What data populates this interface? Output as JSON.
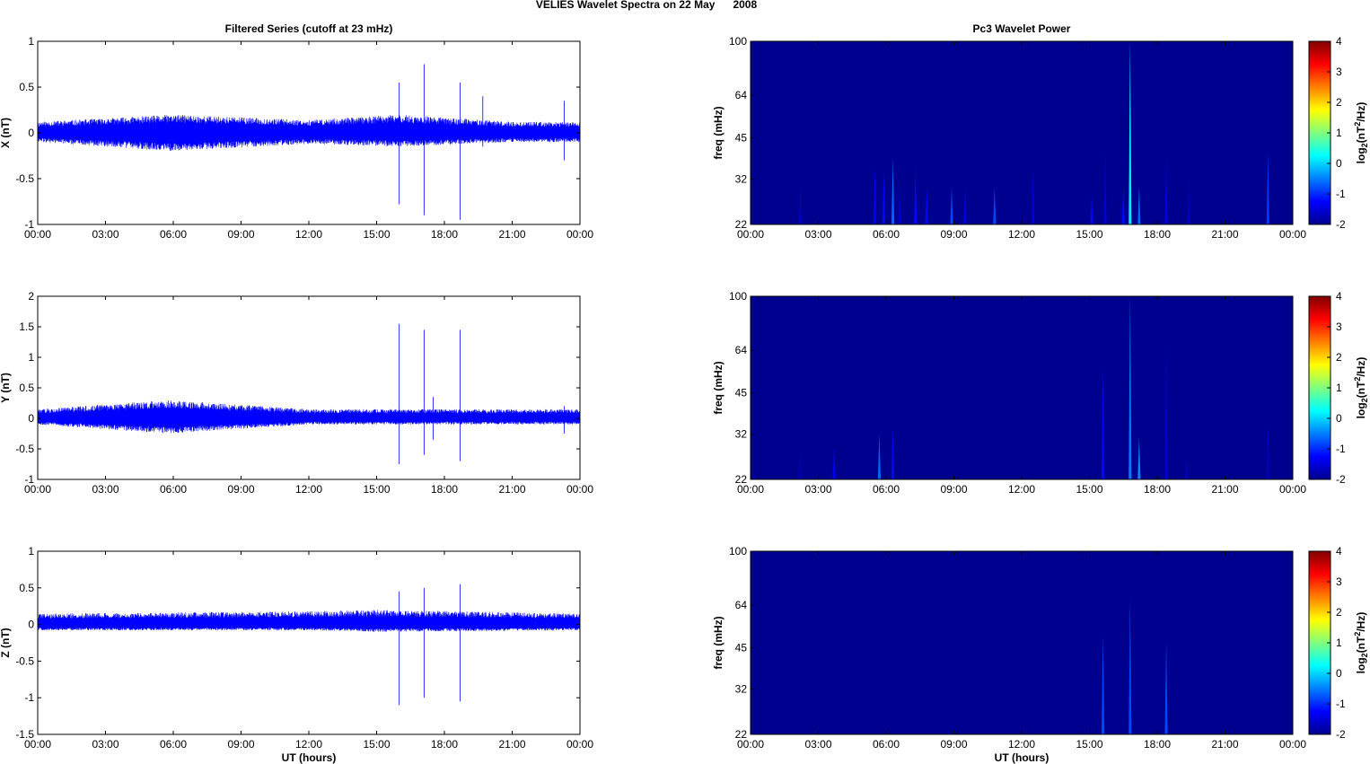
{
  "figure_title": "VELIES Wavelet Spectra on 22 May      2008",
  "colors": {
    "trace": "#0000ff",
    "spectrogram_background": "#00008f"
  },
  "chart_data": [
    {
      "type": "line",
      "title": "Filtered Series (cutoff at 23 mHz)",
      "xlabel": "",
      "ylabel": "X (nT)",
      "xlim": [
        "00:00",
        "00:00"
      ],
      "xticks": [
        "00:00",
        "03:00",
        "06:00",
        "09:00",
        "12:00",
        "15:00",
        "18:00",
        "21:00",
        "00:00"
      ],
      "ylim": [
        -1,
        1
      ],
      "yticks": [
        "-1",
        "-0.5",
        "0",
        "0.5",
        "1"
      ],
      "noise_band": [
        {
          "x": 0,
          "upper": 0.12,
          "lower": -0.1
        },
        {
          "x": 6,
          "upper": 0.2,
          "lower": -0.2
        },
        {
          "x": 12,
          "upper": 0.14,
          "lower": -0.12
        },
        {
          "x": 16,
          "upper": 0.2,
          "lower": -0.15
        },
        {
          "x": 21,
          "upper": 0.12,
          "lower": -0.1
        },
        {
          "x": 24,
          "upper": 0.12,
          "lower": -0.1
        }
      ],
      "spikes": [
        {
          "x": 16.0,
          "min": -0.78,
          "max": 0.55
        },
        {
          "x": 17.1,
          "min": -0.9,
          "max": 0.75
        },
        {
          "x": 18.7,
          "min": -0.95,
          "max": 0.55
        },
        {
          "x": 19.7,
          "min": -0.15,
          "max": 0.4
        },
        {
          "x": 23.3,
          "min": -0.3,
          "max": 0.35
        }
      ]
    },
    {
      "type": "line",
      "title": "",
      "xlabel": "",
      "ylabel": "Y (nT)",
      "xlim": [
        "00:00",
        "00:00"
      ],
      "xticks": [
        "00:00",
        "03:00",
        "06:00",
        "09:00",
        "12:00",
        "15:00",
        "18:00",
        "21:00",
        "00:00"
      ],
      "ylim": [
        -1,
        2
      ],
      "yticks": [
        "-1",
        "-0.5",
        "0",
        "0.5",
        "1",
        "1.5",
        "2"
      ],
      "noise_band": [
        {
          "x": 0,
          "upper": 0.15,
          "lower": -0.1
        },
        {
          "x": 5.8,
          "upper": 0.3,
          "lower": -0.25
        },
        {
          "x": 12,
          "upper": 0.15,
          "lower": -0.1
        },
        {
          "x": 24,
          "upper": 0.15,
          "lower": -0.1
        }
      ],
      "spikes": [
        {
          "x": 16.0,
          "min": -0.75,
          "max": 1.55
        },
        {
          "x": 17.1,
          "min": -0.6,
          "max": 1.45
        },
        {
          "x": 17.5,
          "min": -0.35,
          "max": 0.35
        },
        {
          "x": 18.7,
          "min": -0.7,
          "max": 1.45
        },
        {
          "x": 23.3,
          "min": -0.25,
          "max": 0.2
        }
      ]
    },
    {
      "type": "line",
      "title": "",
      "xlabel": "UT (hours)",
      "ylabel": "Z (nT)",
      "xlim": [
        "00:00",
        "00:00"
      ],
      "xticks": [
        "00:00",
        "03:00",
        "06:00",
        "09:00",
        "12:00",
        "15:00",
        "18:00",
        "21:00",
        "00:00"
      ],
      "ylim": [
        -1.5,
        1
      ],
      "yticks": [
        "-1.5",
        "-1",
        "-0.5",
        "0",
        "0.5",
        "1"
      ],
      "noise_band": [
        {
          "x": 0,
          "upper": 0.15,
          "lower": -0.08
        },
        {
          "x": 12,
          "upper": 0.18,
          "lower": -0.08
        },
        {
          "x": 15,
          "upper": 0.2,
          "lower": -0.1
        },
        {
          "x": 24,
          "upper": 0.15,
          "lower": -0.08
        }
      ],
      "spikes": [
        {
          "x": 16.0,
          "min": -1.1,
          "max": 0.45
        },
        {
          "x": 17.1,
          "min": -1.0,
          "max": 0.5
        },
        {
          "x": 18.7,
          "min": -1.05,
          "max": 0.55
        }
      ]
    },
    {
      "type": "heatmap",
      "title": "Pc3 Wavelet Power",
      "xlabel": "",
      "ylabel": "freq (mHz)",
      "xticks": [
        "00:00",
        "03:00",
        "06:00",
        "09:00",
        "12:00",
        "15:00",
        "18:00",
        "21:00",
        "00:00"
      ],
      "ylim": [
        22,
        100
      ],
      "yscale": "log",
      "yticks": [
        22,
        32,
        45,
        64,
        100
      ],
      "colorbar": {
        "label_base": "log",
        "label_sub": "2",
        "label_open": "(nT",
        "label_sup": "2",
        "label_close": "/Hz)",
        "range": [
          -2,
          4
        ],
        "ticks": [
          "-2",
          "-1",
          "0",
          "1",
          "2",
          "3",
          "4"
        ]
      },
      "bursts": [
        {
          "x": 2.2,
          "f_top": 30,
          "level": -1.6
        },
        {
          "x": 5.5,
          "f_top": 36,
          "level": -1.3
        },
        {
          "x": 5.9,
          "f_top": 34,
          "level": -1.2
        },
        {
          "x": 6.3,
          "f_top": 38,
          "level": -0.6
        },
        {
          "x": 6.6,
          "f_top": 30,
          "level": -1.5
        },
        {
          "x": 7.3,
          "f_top": 35,
          "level": -1.2
        },
        {
          "x": 7.8,
          "f_top": 30,
          "level": -1.2
        },
        {
          "x": 8.9,
          "f_top": 30,
          "level": -0.8
        },
        {
          "x": 9.5,
          "f_top": 30,
          "level": -1.4
        },
        {
          "x": 10.8,
          "f_top": 30,
          "level": -0.8
        },
        {
          "x": 12.5,
          "f_top": 35,
          "level": -1.5
        },
        {
          "x": 15.1,
          "f_top": 28,
          "level": -1.2
        },
        {
          "x": 15.7,
          "f_top": 40,
          "level": -1.5
        },
        {
          "x": 16.5,
          "f_top": 30,
          "level": -1.2
        },
        {
          "x": 16.8,
          "f_top": 100,
          "level": 0.2
        },
        {
          "x": 17.2,
          "f_top": 30,
          "level": -0.6
        },
        {
          "x": 18.4,
          "f_top": 38,
          "level": -1.4
        },
        {
          "x": 19.4,
          "f_top": 32,
          "level": -1.6
        },
        {
          "x": 22.9,
          "f_top": 40,
          "level": -0.9
        }
      ]
    },
    {
      "type": "heatmap",
      "title": "",
      "xlabel": "",
      "ylabel": "freq (mHz)",
      "xticks": [
        "00:00",
        "03:00",
        "06:00",
        "09:00",
        "12:00",
        "15:00",
        "18:00",
        "21:00",
        "00:00"
      ],
      "ylim": [
        22,
        100
      ],
      "yscale": "log",
      "yticks": [
        22,
        32,
        45,
        64,
        100
      ],
      "colorbar": {
        "label_base": "log",
        "label_sub": "2",
        "label_open": "(nT",
        "label_sup": "2",
        "label_close": "/Hz)",
        "range": [
          -2,
          4
        ],
        "ticks": [
          "-2",
          "-1",
          "0",
          "1",
          "2",
          "3",
          "4"
        ]
      },
      "bursts": [
        {
          "x": 2.2,
          "f_top": 27,
          "level": -1.7
        },
        {
          "x": 3.7,
          "f_top": 29,
          "level": -1.3
        },
        {
          "x": 5.7,
          "f_top": 32,
          "level": -0.6
        },
        {
          "x": 6.3,
          "f_top": 34,
          "level": -1.2
        },
        {
          "x": 15.6,
          "f_top": 56,
          "level": -1.2
        },
        {
          "x": 16.8,
          "f_top": 100,
          "level": -0.5
        },
        {
          "x": 17.2,
          "f_top": 31,
          "level": -0.4
        },
        {
          "x": 18.4,
          "f_top": 70,
          "level": -1.5
        },
        {
          "x": 19.3,
          "f_top": 26,
          "level": -1.6
        },
        {
          "x": 22.9,
          "f_top": 36,
          "level": -1.6
        }
      ]
    },
    {
      "type": "heatmap",
      "title": "",
      "xlabel": "UT (hours)",
      "ylabel": "freq (mHz)",
      "xticks": [
        "00:00",
        "03:00",
        "06:00",
        "09:00",
        "12:00",
        "15:00",
        "18:00",
        "21:00",
        "00:00"
      ],
      "ylim": [
        22,
        100
      ],
      "yscale": "log",
      "yticks": [
        22,
        32,
        45,
        64,
        100
      ],
      "colorbar": {
        "label_base": "log",
        "label_sub": "2",
        "label_open": "(nT",
        "label_sup": "2",
        "label_close": "/Hz)",
        "range": [
          -2,
          4
        ],
        "ticks": [
          "-2",
          "-1",
          "0",
          "1",
          "2",
          "3",
          "4"
        ]
      },
      "bursts": [
        {
          "x": 15.6,
          "f_top": 50,
          "level": -0.8
        },
        {
          "x": 16.8,
          "f_top": 68,
          "level": -0.8
        },
        {
          "x": 18.4,
          "f_top": 48,
          "level": -0.8
        }
      ]
    }
  ]
}
